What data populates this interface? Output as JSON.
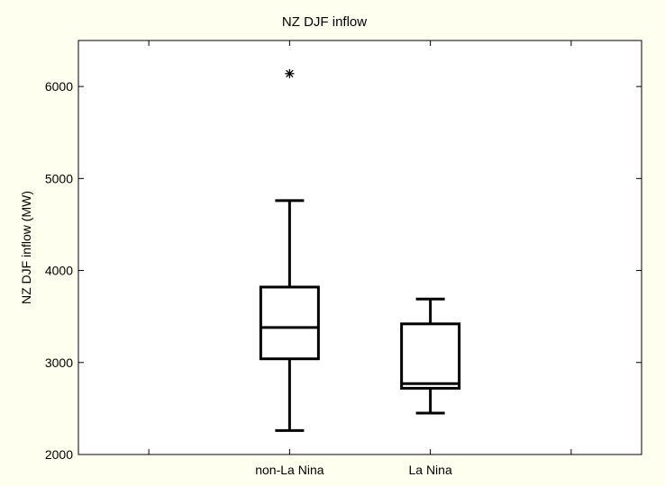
{
  "chart_data": {
    "type": "boxplot",
    "title": "NZ DJF inflow",
    "ylabel": "NZ DJF inflow (MW)",
    "xlabel": "",
    "ylim": [
      2000,
      6500
    ],
    "yticks": [
      2000,
      3000,
      4000,
      5000,
      6000
    ],
    "grid": false,
    "categories": [
      "non-La Nina",
      "La Nina"
    ],
    "boxes": [
      {
        "category": "non-La Nina",
        "whisker_low": 2260,
        "q1": 3040,
        "median": 3380,
        "q3": 3820,
        "whisker_high": 4760,
        "outliers": [
          6140
        ]
      },
      {
        "category": "La Nina",
        "whisker_low": 2450,
        "q1": 2720,
        "median": 2770,
        "q3": 3420,
        "whisker_high": 3690,
        "outliers": []
      }
    ],
    "colors": {
      "background": "#fffff0",
      "line": "#000000"
    }
  }
}
